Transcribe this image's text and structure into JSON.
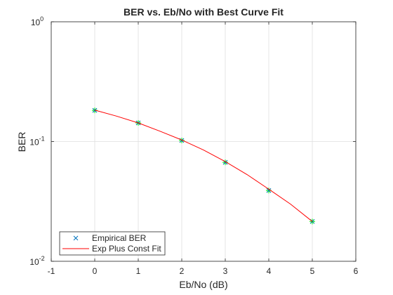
{
  "chart_data": {
    "type": "line",
    "title": "BER vs. Eb/No with Best Curve Fit",
    "x_label": "Eb/No (dB)",
    "y_label": "BER",
    "xlim": [
      -1,
      6
    ],
    "xticks": [
      -1,
      0,
      1,
      2,
      3,
      4,
      5,
      6
    ],
    "ylim": [
      0.01,
      1
    ],
    "y_scale": "log",
    "yticks": [
      {
        "value": 0.01,
        "label": "10",
        "exponent": "-2"
      },
      {
        "value": 0.1,
        "label": "10",
        "exponent": "-1"
      },
      {
        "value": 1,
        "label": "10",
        "exponent": "0"
      }
    ],
    "grid": true,
    "legend_position": "lower-left",
    "series": [
      {
        "name": "Empirical BER",
        "color": "#0072bd",
        "marker": "x",
        "overlay_color": "#00ff00",
        "x": [
          0,
          1,
          2,
          3,
          4,
          5
        ],
        "values": [
          0.182,
          0.143,
          0.102,
          0.067,
          0.039,
          0.0215
        ]
      },
      {
        "name": "Exp Plus Const Fit",
        "color": "#ff0000",
        "marker": "none",
        "x": [
          0,
          0.5,
          1,
          1.5,
          2,
          2.5,
          3,
          3.5,
          4,
          4.5,
          5
        ],
        "values": [
          0.183,
          0.163,
          0.143,
          0.122,
          0.103,
          0.085,
          0.068,
          0.053,
          0.04,
          0.03,
          0.0215
        ]
      }
    ]
  }
}
